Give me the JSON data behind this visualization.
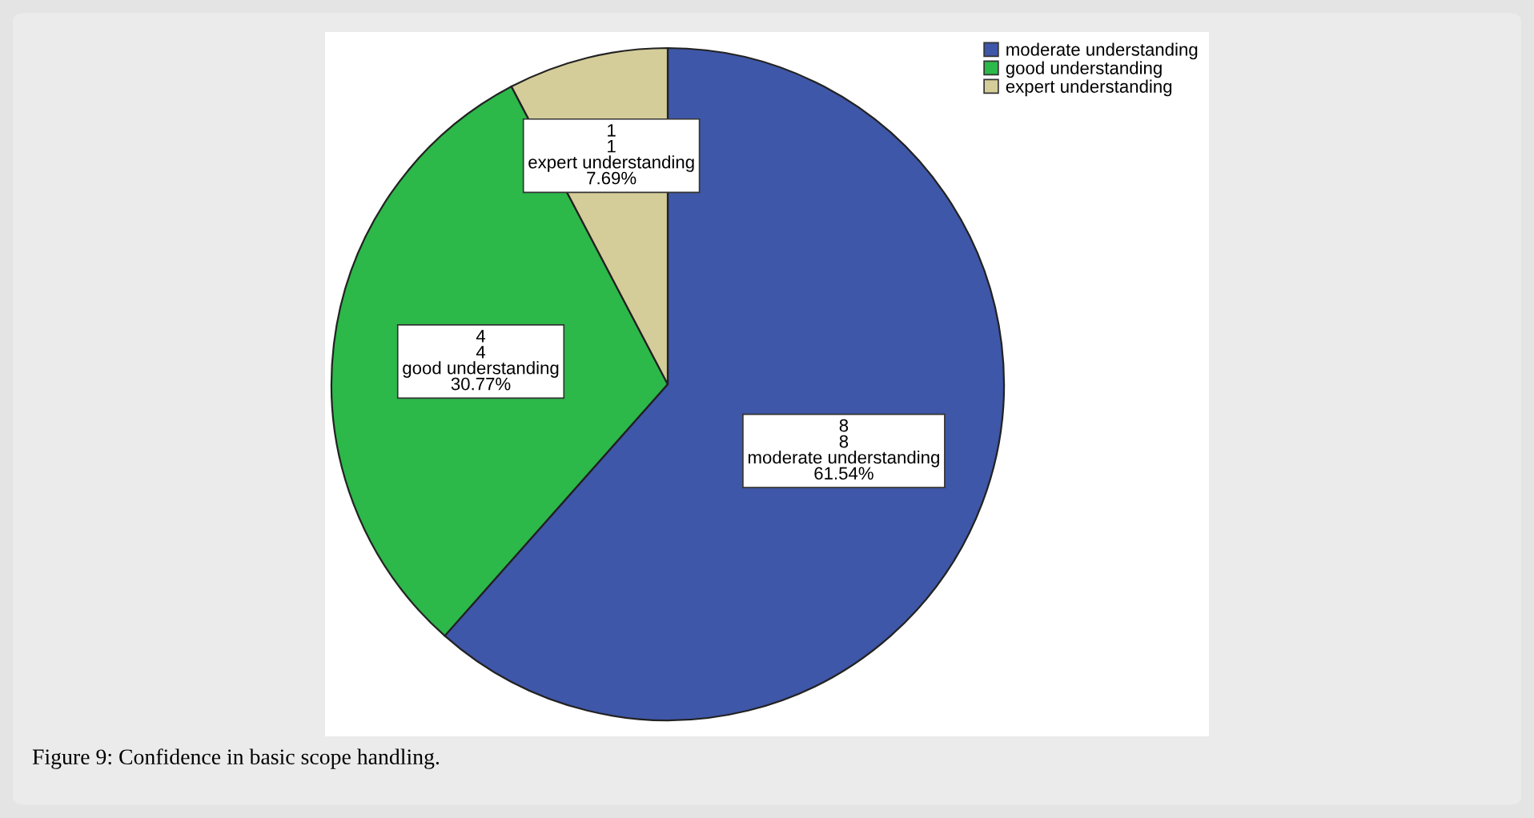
{
  "chart_data": {
    "type": "pie",
    "categories": [
      "moderate understanding",
      "good understanding",
      "expert understanding"
    ],
    "values": [
      8,
      4,
      1
    ],
    "colors": [
      "#3f57a8",
      "#2db84a",
      "#d4cd99"
    ],
    "value_labels": [
      "8\n8\nmoderate understanding\n61.54%",
      "4\n4\ngood understanding\n30.77%",
      "1\n1\nexpert understanding\n7.69%"
    ],
    "legend": "top right",
    "annotations": [
      "Figure 9: Confidence in basic scope handling."
    ]
  }
}
